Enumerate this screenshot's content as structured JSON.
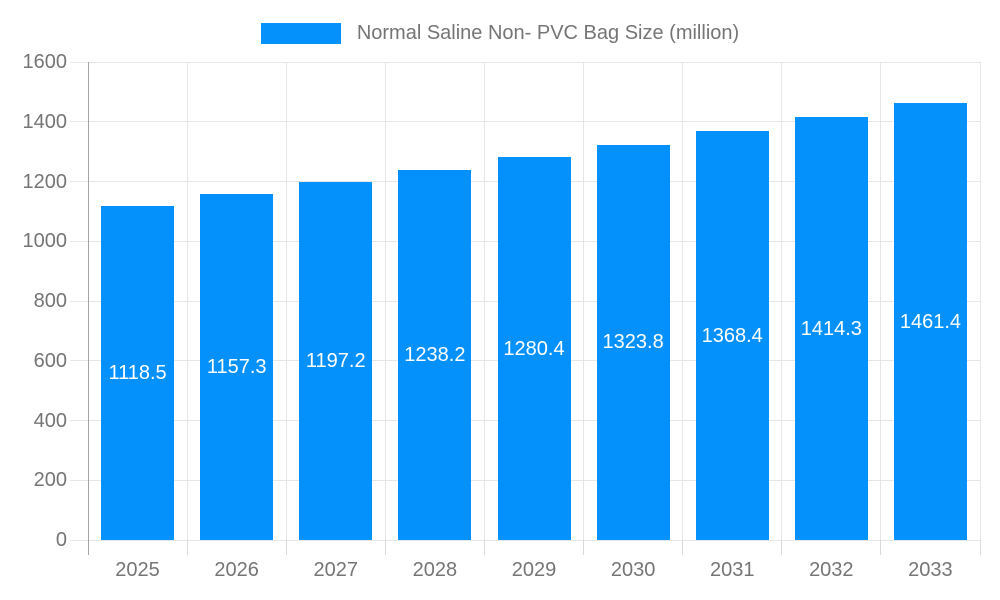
{
  "legend": {
    "label": "Normal Saline Non- PVC Bag Size (million)"
  },
  "chart_data": {
    "type": "bar",
    "title": "",
    "xlabel": "",
    "ylabel": "",
    "categories": [
      "2025",
      "2026",
      "2027",
      "2028",
      "2029",
      "2030",
      "2031",
      "2032",
      "2033"
    ],
    "series": [
      {
        "name": "Normal Saline Non- PVC Bag Size (million)",
        "values": [
          1118.5,
          1157.3,
          1197.2,
          1238.2,
          1280.4,
          1323.8,
          1368.4,
          1414.3,
          1461.4
        ]
      }
    ],
    "value_labels": [
      "1118.5",
      "1157.3",
      "1197.2",
      "1238.2",
      "1280.4",
      "1323.8",
      "1368.4",
      "1414.3",
      "1461.4"
    ],
    "ylim": [
      0,
      1600
    ],
    "ytick_step": 200,
    "ytick_labels": [
      "0",
      "200",
      "400",
      "600",
      "800",
      "1000",
      "1200",
      "1400",
      "1600"
    ],
    "grid": "on",
    "legend_position": "top"
  },
  "colors": {
    "bar": "#0591FB",
    "grid": "#e6e6e6",
    "axis_line": "#a5a5a5",
    "tick": "#d9d9d9",
    "axis_text": "#757575",
    "bar_label_text": "#ffffff"
  }
}
